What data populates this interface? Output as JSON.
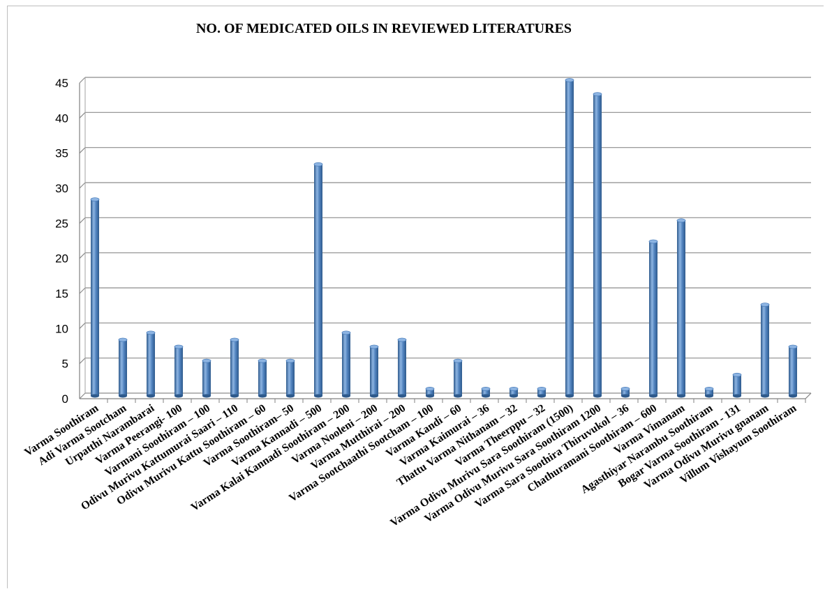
{
  "chart_data": {
    "type": "bar",
    "title": "NO. OF MEDICATED OILS IN REVIEWED LITERATURES",
    "xlabel": "",
    "ylabel": "",
    "ylim": [
      0,
      45
    ],
    "yticks": [
      0,
      5,
      10,
      15,
      20,
      25,
      30,
      35,
      40,
      45
    ],
    "grid": true,
    "style": "3d-cylinder",
    "colors": {
      "bar": "#4F81BD",
      "bar_light": "#8DB4E2",
      "bar_dark": "#2E5A8C",
      "grid": "#8c8c8c"
    },
    "categories": [
      "Varma Soothiram",
      "Adi Varma Sootcham",
      "Urpatthi Narambarai",
      "Varma Peerangi- 100",
      "Varmani Soothiram – 100",
      "Odivu Murivu Kattumurai Saari – 110",
      "Odivu Murivu Kattu Soothiram – 60",
      "Varma Soothiram– 50",
      "Varma  Kannadi – 500",
      "Varma Kalai Kannadi Soothiram – 200",
      "Varma Nooleni – 200",
      "Varma Mutthirai – 200",
      "Varma Sootchaathi Sootcham  – 100",
      "Varma Kandi – 60",
      "Varma Kaimurai – 36",
      "Thattu Varma Nithanam – 32",
      "Varma Theerppu – 32",
      "Varma Odivu Murivu Sara Soothiram (1500)",
      "Varma Odivu Murivu Sara Soothiram 1200",
      "Varma Sara Soothira Thiruvukol – 36",
      "Chathuramani Soothiram – 600",
      "Varma  Vimanam",
      "Agasthiyar Narambu Soothiram",
      "Bogar Varma Soothiram - 131",
      "Varma Odivu Murivu gnanam",
      "Villum Vishayum Soothiram"
    ],
    "values": [
      28,
      8,
      9,
      7,
      5,
      8,
      5,
      5,
      33,
      9,
      7,
      8,
      1,
      5,
      1,
      1,
      1,
      45,
      43,
      1,
      22,
      25,
      1,
      3,
      13,
      7
    ]
  }
}
